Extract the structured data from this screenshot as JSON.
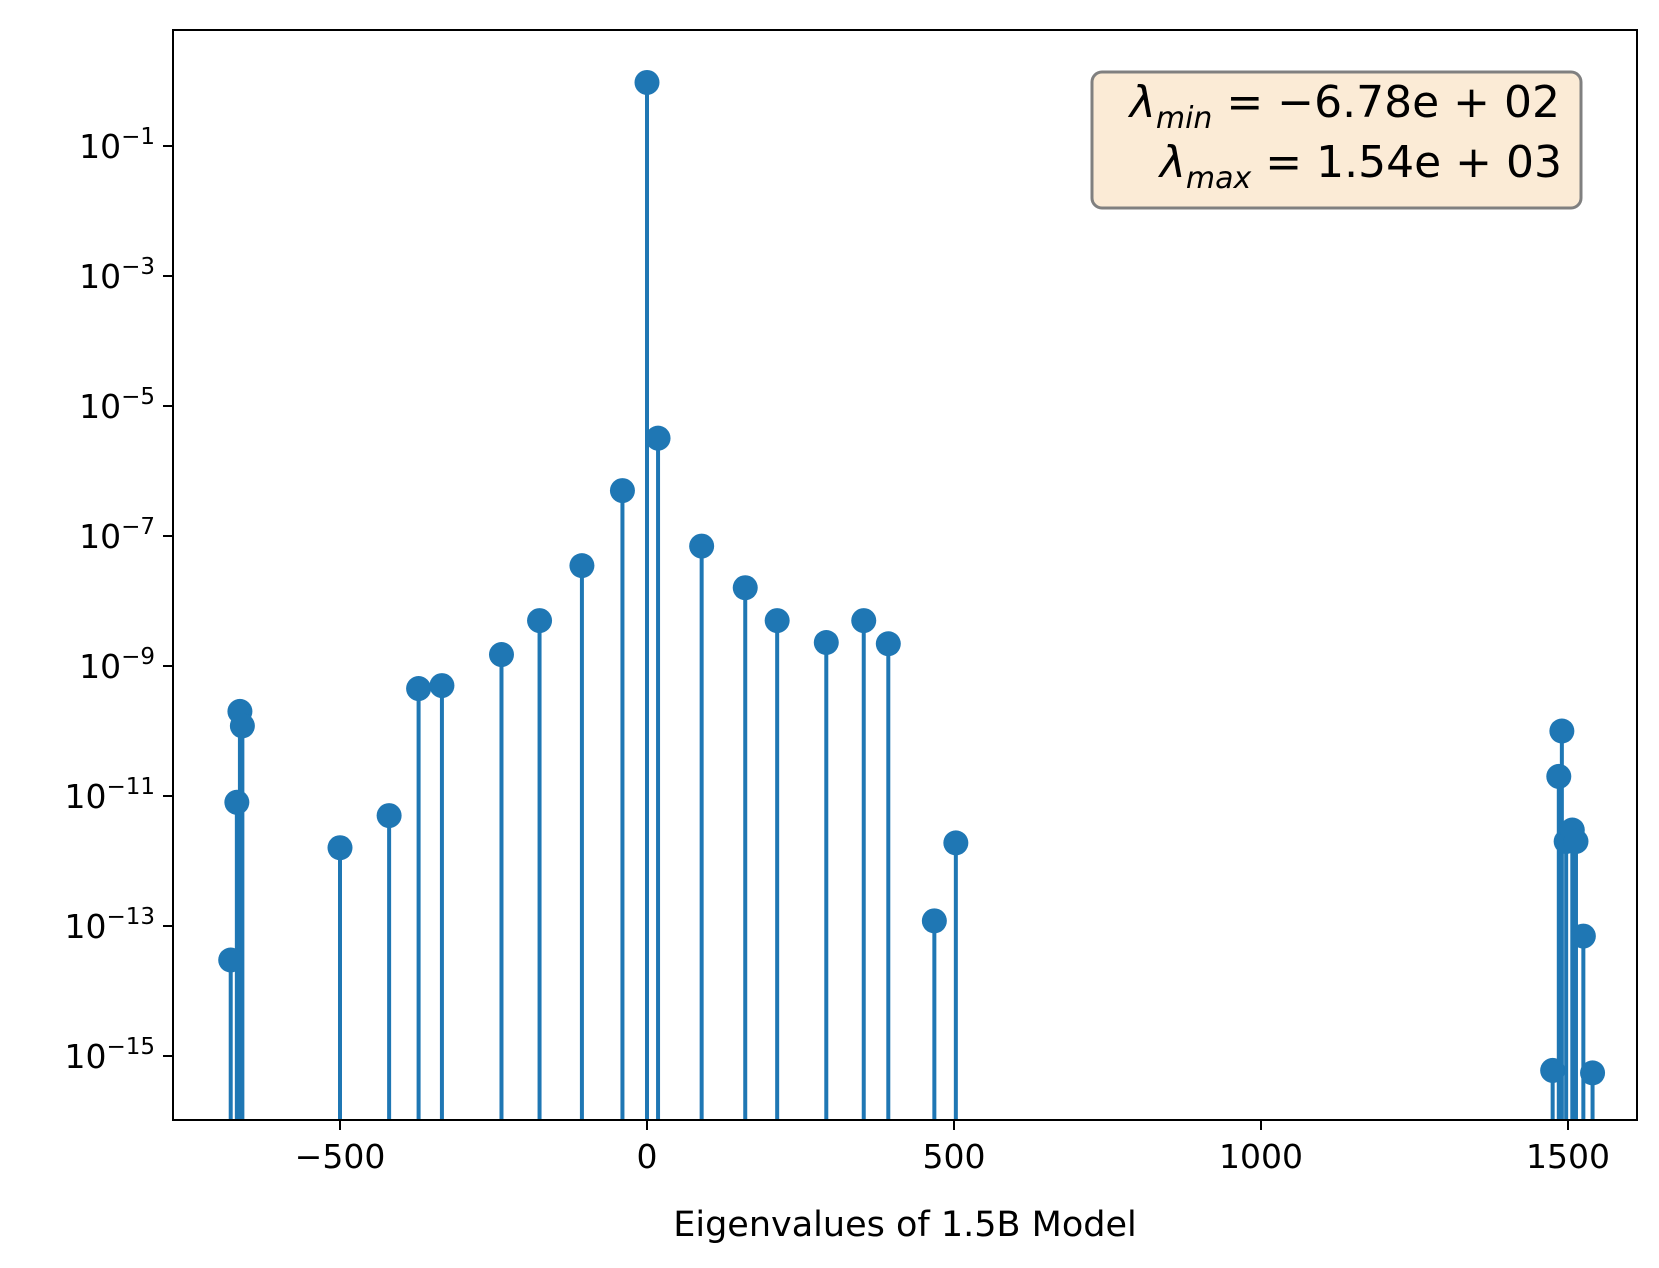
{
  "chart_data": {
    "type": "stem",
    "xlabel": "Eigenvalues of 1.5B Model",
    "ylabel": "",
    "title": "",
    "yscale": "log",
    "xlim": [
      -790,
      1640
    ],
    "ylim": [
      1e-16,
      15
    ],
    "x_ticks": [
      -500,
      0,
      500,
      1000,
      1500
    ],
    "x_tick_labels": [
      "−500",
      "0",
      "500",
      "1000",
      "1500"
    ],
    "y_ticks": [
      0.1,
      0.001,
      1e-05,
      1e-07,
      1e-09,
      1e-11,
      1e-13,
      1e-15
    ],
    "y_tick_labels": [
      {
        "base": "10",
        "exp": "−1"
      },
      {
        "base": "10",
        "exp": "−3"
      },
      {
        "base": "10",
        "exp": "−5"
      },
      {
        "base": "10",
        "exp": "−7"
      },
      {
        "base": "10",
        "exp": "−9"
      },
      {
        "base": "10",
        "exp": "−11"
      },
      {
        "base": "10",
        "exp": "−13"
      },
      {
        "base": "10",
        "exp": "−15"
      }
    ],
    "color": "#1f77b4",
    "annotation": {
      "line1_symbol": "λ",
      "line1_sub": "min",
      "line1_rest": " = −6.78e + 02",
      "line2_symbol": "λ",
      "line2_sub": "max",
      "line2_rest": " = 1.54e + 03",
      "background": "#fbebd6",
      "border": "#808080",
      "placement": "top-right"
    },
    "series": [
      {
        "points": [
          {
            "x": -678,
            "y": 3e-14
          },
          {
            "x": -668,
            "y": 8e-12
          },
          {
            "x": -663,
            "y": 2e-10
          },
          {
            "x": -659,
            "y": 1.2e-10
          },
          {
            "x": -500,
            "y": 1.6e-12
          },
          {
            "x": -420,
            "y": 5e-12
          },
          {
            "x": -372,
            "y": 4.5e-10
          },
          {
            "x": -334,
            "y": 5e-10
          },
          {
            "x": -237,
            "y": 1.5e-09
          },
          {
            "x": -175,
            "y": 5e-09
          },
          {
            "x": -106,
            "y": 3.5e-08
          },
          {
            "x": -40,
            "y": 5e-07
          },
          {
            "x": 0,
            "y": 0.95
          },
          {
            "x": 18,
            "y": 3.2e-06
          },
          {
            "x": 89,
            "y": 7e-08
          },
          {
            "x": 160,
            "y": 1.6e-08
          },
          {
            "x": 212,
            "y": 5e-09
          },
          {
            "x": 292,
            "y": 2.3e-09
          },
          {
            "x": 353,
            "y": 5e-09
          },
          {
            "x": 393,
            "y": 2.2e-09
          },
          {
            "x": 468,
            "y": 1.2e-13
          },
          {
            "x": 503,
            "y": 1.9e-12
          },
          {
            "x": 1475,
            "y": 6e-16
          },
          {
            "x": 1485,
            "y": 2e-11
          },
          {
            "x": 1490,
            "y": 1e-10
          },
          {
            "x": 1497,
            "y": 2e-12
          },
          {
            "x": 1507,
            "y": 3e-12
          },
          {
            "x": 1513,
            "y": 2e-12
          },
          {
            "x": 1525,
            "y": 7e-14
          },
          {
            "x": 1540,
            "y": 5.5e-16
          }
        ]
      }
    ]
  }
}
